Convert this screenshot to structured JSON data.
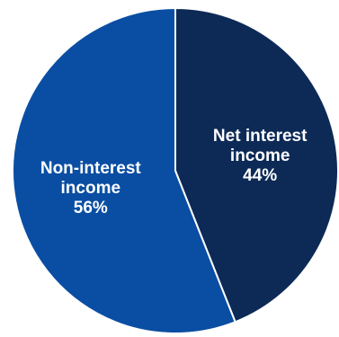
{
  "chart_data": {
    "type": "pie",
    "title": "",
    "slices": [
      {
        "label_lines": [
          "Net interest",
          "income"
        ],
        "value": 44,
        "value_label": "44%",
        "color": "#0d2a57"
      },
      {
        "label_lines": [
          "Non-interest",
          "income"
        ],
        "value": 56,
        "value_label": "56%",
        "color": "#0a4ea3"
      }
    ],
    "start_angle_deg": 0,
    "direction": "clockwise",
    "slice_border_color": "#ffffff"
  }
}
